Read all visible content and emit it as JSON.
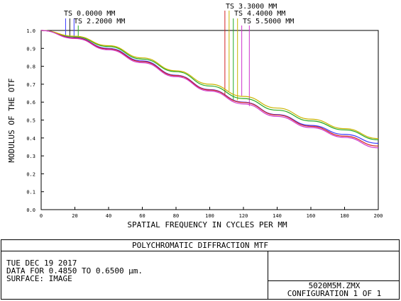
{
  "chart_data": {
    "type": "line",
    "ylabel": "MODULUS OF THE OTF",
    "xlabel": "SPATIAL FREQUENCY IN CYCLES PER MM",
    "xlim": [
      0,
      200
    ],
    "ylim": [
      0,
      1.0
    ],
    "x_ticks": [
      "0",
      "20",
      "40",
      "60",
      "80",
      "100",
      "120",
      "140",
      "160",
      "180",
      "200"
    ],
    "y_ticks": [
      "0.0",
      "0.1",
      "0.2",
      "0.3",
      "0.4",
      "0.5",
      "0.6",
      "0.7",
      "0.8",
      "0.9",
      "1.0"
    ],
    "grid": false,
    "x": [
      0,
      20,
      40,
      60,
      80,
      100,
      120,
      140,
      160,
      180,
      200
    ],
    "series": [
      {
        "name": "TS 0.0000 MM",
        "color": "#3a3aff",
        "values": [
          1.0,
          0.96,
          0.9,
          0.83,
          0.75,
          0.67,
          0.6,
          0.53,
          0.47,
          0.42,
          0.37
        ]
      },
      {
        "name": "TS 2.2000 MM",
        "color": "#22a822",
        "values": [
          1.0,
          0.965,
          0.91,
          0.84,
          0.77,
          0.69,
          0.62,
          0.555,
          0.495,
          0.445,
          0.39
        ]
      },
      {
        "name": "TS 3.3000 MM",
        "color": "#d42020",
        "values": [
          1.0,
          0.958,
          0.897,
          0.826,
          0.748,
          0.668,
          0.598,
          0.528,
          0.465,
          0.41,
          0.355
        ]
      },
      {
        "name": "TS 4.4000 MM",
        "color": "#c8b400",
        "values": [
          1.0,
          0.968,
          0.915,
          0.847,
          0.775,
          0.7,
          0.632,
          0.567,
          0.505,
          0.452,
          0.397
        ]
      },
      {
        "name": "TS 5.5000 MM",
        "color": "#cc33cc",
        "values": [
          1.0,
          0.955,
          0.892,
          0.82,
          0.742,
          0.662,
          0.59,
          0.52,
          0.458,
          0.403,
          0.345
        ]
      }
    ],
    "marker_x": [
      14.5,
      17,
      19.5,
      22,
      109,
      111.5,
      114,
      116.5,
      119,
      123.5
    ],
    "marker_colors": [
      "#3a3aff",
      "#1f1f1f",
      "#3a3aff",
      "#22a822",
      "#d42020",
      "#c8b400",
      "#22a822",
      "#c8b400",
      "#cc33cc",
      "#cc33cc"
    ]
  },
  "legend": {
    "left_1": "TS 0.0000 MM",
    "left_2": "TS 2.2000 MM",
    "right_1": "TS 3.3000 MM",
    "right_2": "TS 4.4000 MM",
    "right_3": "TS 5.5000 MM"
  },
  "footer": {
    "title": "POLYCHROMATIC DIFFRACTION MTF",
    "date": "TUE DEC 19 2017",
    "data_range": "DATA FOR 0.4850 TO 0.6500 μm.",
    "surface": "SURFACE: IMAGE",
    "file": "5020M5M.ZMX",
    "configuration": "CONFIGURATION 1 OF 1"
  }
}
